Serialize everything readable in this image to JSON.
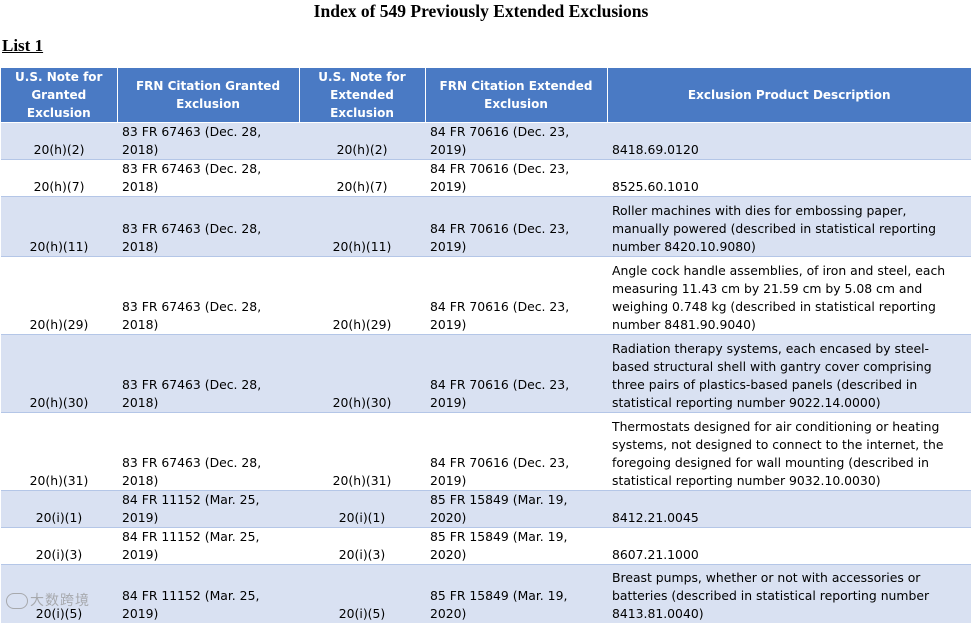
{
  "document": {
    "title": "Index of 549 Previously Extended Exclusions",
    "list_label": "List 1"
  },
  "table": {
    "headers": [
      "U.S. Note for Granted Exclusion",
      "FRN Citation Granted Exclusion",
      "U.S. Note for Extended Exclusion",
      "FRN Citation Extended Exclusion",
      "Exclusion Product Description"
    ],
    "rows": [
      {
        "granted_note": "20(h)(2)",
        "granted_frn": "83 FR 67463 (Dec. 28, 2018)",
        "extended_note": "20(h)(2)",
        "extended_frn": "84 FR 70616 (Dec. 23, 2019)",
        "description": "8418.69.0120"
      },
      {
        "granted_note": "20(h)(7)",
        "granted_frn": "83 FR 67463 (Dec. 28, 2018)",
        "extended_note": "20(h)(7)",
        "extended_frn": "84 FR 70616 (Dec. 23, 2019)",
        "description": "8525.60.1010"
      },
      {
        "granted_note": "20(h)(11)",
        "granted_frn": "83 FR 67463 (Dec. 28, 2018)",
        "extended_note": "20(h)(11)",
        "extended_frn": "84 FR 70616 (Dec. 23, 2019)",
        "description": "Roller machines with dies for embossing paper, manually powered (described in statistical reporting number 8420.10.9080)"
      },
      {
        "granted_note": "20(h)(29)",
        "granted_frn": "83 FR 67463 (Dec. 28, 2018)",
        "extended_note": "20(h)(29)",
        "extended_frn": "84 FR 70616 (Dec. 23, 2019)",
        "description": "Angle cock handle assemblies, of iron and steel, each measuring 11.43 cm by 21.59 cm by 5.08 cm and weighing 0.748 kg (described in statistical reporting number 8481.90.9040)"
      },
      {
        "granted_note": "20(h)(30)",
        "granted_frn": "83 FR 67463 (Dec. 28, 2018)",
        "extended_note": "20(h)(30)",
        "extended_frn": "84 FR 70616 (Dec. 23, 2019)",
        "description": "Radiation therapy systems, each encased by steel-based structural shell with gantry cover comprising three pairs of plastics-based panels (described in statistical reporting number 9022.14.0000)"
      },
      {
        "granted_note": "20(h)(31)",
        "granted_frn": "83 FR 67463 (Dec. 28, 2018)",
        "extended_note": "20(h)(31)",
        "extended_frn": "84 FR 70616 (Dec. 23, 2019)",
        "description": "Thermostats designed for air conditioning or heating systems, not designed to connect to the internet, the foregoing designed for wall mounting (described in statistical reporting number 9032.10.0030)"
      },
      {
        "granted_note": "20(i)(1)",
        "granted_frn": "84 FR 11152 (Mar. 25, 2019)",
        "extended_note": "20(i)(1)",
        "extended_frn": "85 FR 15849 (Mar. 19, 2020)",
        "description": "8412.21.0045"
      },
      {
        "granted_note": "20(i)(3)",
        "granted_frn": "84 FR 11152 (Mar. 25, 2019)",
        "extended_note": "20(i)(3)",
        "extended_frn": "85 FR 15849 (Mar. 19, 2020)",
        "description": "8607.21.1000"
      },
      {
        "granted_note": "20(i)(5)",
        "granted_frn": "84 FR 11152 (Mar. 25, 2019)",
        "extended_note": "20(i)(5)",
        "extended_frn": "85 FR 15849 (Mar. 19, 2020)",
        "description": "Breast pumps, whether or not with accessories or batteries (described in statistical reporting number 8413.81.0040)"
      }
    ]
  },
  "watermark": {
    "text": "大数跨境"
  }
}
